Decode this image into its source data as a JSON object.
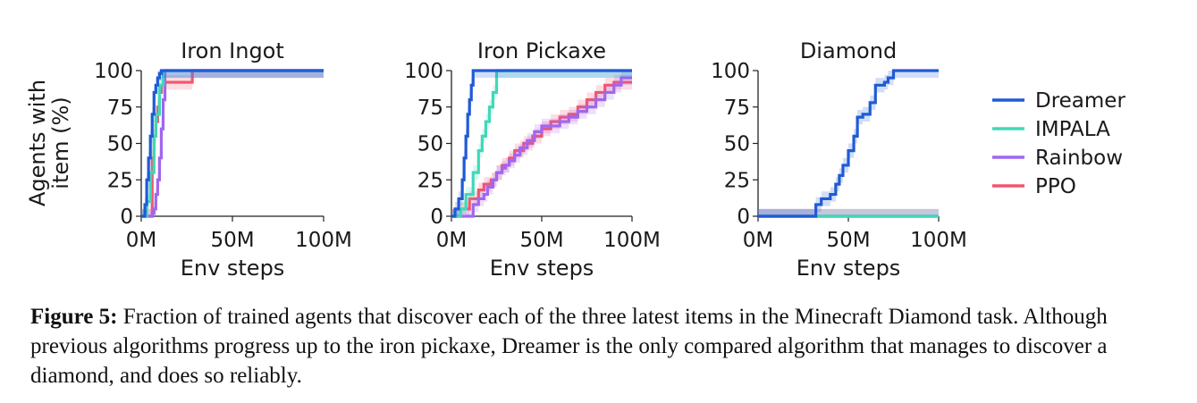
{
  "figure": {
    "ylabel_line1": "Agents with",
    "ylabel_line2": "item (%)",
    "caption_label": "Figure 5:",
    "caption_text": "Fraction of trained agents that discover each of the three latest items in the Minecraft Diamond task. Although previous algorithms progress up to the iron pickaxe, Dreamer is the only compared algorithm that manages to discover a diamond, and does so reliably."
  },
  "legend": [
    {
      "name": "Dreamer",
      "color": "#1f5bd6"
    },
    {
      "name": "IMPALA",
      "color": "#3fd9b8"
    },
    {
      "name": "Rainbow",
      "color": "#a066f0"
    },
    {
      "name": "PPO",
      "color": "#f2566e"
    }
  ],
  "chart_data": [
    {
      "type": "line",
      "title": "Iron Ingot",
      "xlabel": "Env steps",
      "ylabel": "Agents with item (%)",
      "xlim": [
        0,
        100
      ],
      "ylim": [
        0,
        100
      ],
      "x_ticks": [
        "0M",
        "50M",
        "100M"
      ],
      "y_ticks": [
        "0",
        "25",
        "50",
        "75",
        "100"
      ],
      "x_tick_values": [
        0,
        50,
        100
      ],
      "y_tick_values": [
        0,
        25,
        50,
        75,
        100
      ],
      "series": [
        {
          "name": "Dreamer",
          "x": [
            0,
            2,
            3,
            4,
            5,
            6,
            7,
            8,
            9,
            10,
            11,
            100
          ],
          "y": [
            0,
            8,
            25,
            40,
            55,
            70,
            85,
            90,
            95,
            98,
            100,
            100
          ]
        },
        {
          "name": "IMPALA",
          "x": [
            0,
            3,
            5,
            7,
            8,
            10,
            12,
            100
          ],
          "y": [
            0,
            10,
            30,
            55,
            70,
            90,
            100,
            100
          ]
        },
        {
          "name": "Rainbow",
          "x": [
            0,
            5,
            6,
            7,
            8,
            9,
            10,
            11,
            12,
            13,
            100
          ],
          "y": [
            0,
            0,
            2,
            5,
            15,
            25,
            40,
            60,
            80,
            100,
            100
          ]
        },
        {
          "name": "PPO",
          "x": [
            0,
            6,
            7,
            8,
            9,
            10,
            11,
            13,
            16,
            20,
            25,
            28,
            100
          ],
          "y": [
            0,
            40,
            55,
            65,
            75,
            85,
            90,
            92,
            92,
            92,
            92,
            100,
            100
          ]
        }
      ]
    },
    {
      "type": "line",
      "title": "Iron Pickaxe",
      "xlabel": "Env steps",
      "ylabel": "",
      "xlim": [
        0,
        100
      ],
      "ylim": [
        0,
        100
      ],
      "x_ticks": [
        "0M",
        "50M",
        "100M"
      ],
      "y_ticks": [
        "0",
        "25",
        "50",
        "75",
        "100"
      ],
      "x_tick_values": [
        0,
        50,
        100
      ],
      "y_tick_values": [
        0,
        25,
        50,
        75,
        100
      ],
      "series": [
        {
          "name": "Dreamer",
          "x": [
            0,
            2,
            4,
            6,
            7,
            8,
            9,
            10,
            11,
            12,
            100
          ],
          "y": [
            0,
            5,
            12,
            25,
            40,
            55,
            70,
            80,
            90,
            100,
            100
          ]
        },
        {
          "name": "IMPALA",
          "x": [
            0,
            5,
            8,
            12,
            15,
            17,
            19,
            21,
            23,
            25,
            100
          ],
          "y": [
            0,
            5,
            15,
            30,
            45,
            55,
            65,
            75,
            85,
            100,
            100
          ]
        },
        {
          "name": "Rainbow",
          "x": [
            0,
            8,
            12,
            15,
            18,
            20,
            23,
            25,
            28,
            30,
            32,
            35,
            38,
            42,
            46,
            50,
            55,
            60,
            65,
            70,
            75,
            80,
            85,
            90,
            94,
            100
          ],
          "y": [
            0,
            0,
            8,
            12,
            15,
            20,
            25,
            30,
            33,
            35,
            38,
            42,
            47,
            52,
            58,
            62,
            62,
            65,
            68,
            72,
            75,
            80,
            85,
            90,
            95,
            95
          ]
        },
        {
          "name": "PPO",
          "x": [
            0,
            5,
            10,
            15,
            18,
            22,
            25,
            28,
            32,
            35,
            40,
            45,
            50,
            55,
            60,
            65,
            70,
            75,
            80,
            85,
            90,
            95,
            100
          ],
          "y": [
            0,
            5,
            12,
            18,
            22,
            25,
            30,
            35,
            40,
            45,
            50,
            55,
            60,
            65,
            68,
            70,
            75,
            80,
            85,
            90,
            92,
            92,
            92
          ]
        }
      ]
    },
    {
      "type": "line",
      "title": "Diamond",
      "xlabel": "Env steps",
      "ylabel": "",
      "xlim": [
        0,
        100
      ],
      "ylim": [
        0,
        100
      ],
      "x_ticks": [
        "0M",
        "50M",
        "100M"
      ],
      "y_ticks": [
        "0",
        "25",
        "50",
        "75",
        "100"
      ],
      "x_tick_values": [
        0,
        50,
        100
      ],
      "y_tick_values": [
        0,
        25,
        50,
        75,
        100
      ],
      "series": [
        {
          "name": "Dreamer",
          "x": [
            0,
            30,
            32,
            35,
            40,
            43,
            45,
            47,
            50,
            53,
            55,
            58,
            62,
            65,
            70,
            72,
            75,
            100
          ],
          "y": [
            0,
            0,
            8,
            12,
            15,
            22,
            28,
            35,
            45,
            55,
            68,
            70,
            78,
            90,
            92,
            95,
            100,
            100
          ]
        },
        {
          "name": "IMPALA",
          "x": [
            0,
            100
          ],
          "y": [
            0,
            0
          ]
        },
        {
          "name": "Rainbow",
          "x": [
            0,
            100
          ],
          "y": [
            0,
            0
          ]
        },
        {
          "name": "PPO",
          "x": [
            0,
            100
          ],
          "y": [
            0,
            0
          ]
        }
      ]
    }
  ]
}
